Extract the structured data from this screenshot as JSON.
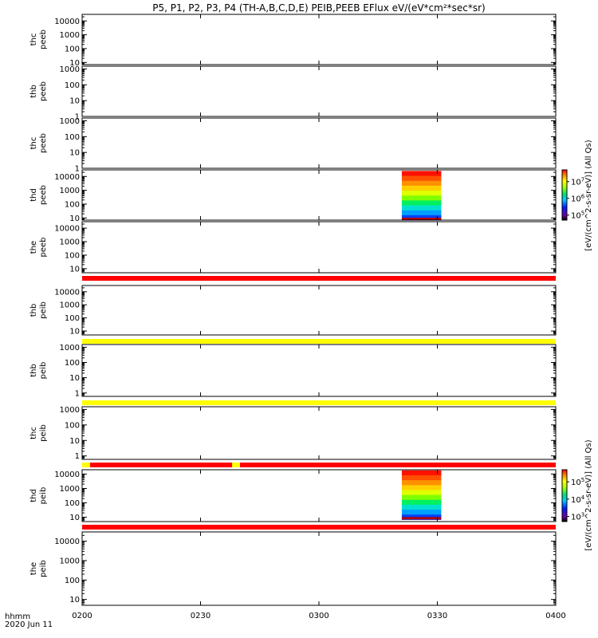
{
  "title": "P5, P1, P2, P3, P4 (TH-A,B,C,D,E) PEIB,PEEB EFlux eV/(eV*cm²*sec*sr)",
  "footer": {
    "time_label": "hhmm",
    "date_label": "2020 Jun 11"
  },
  "colors": {
    "red_flag": "#ff0000",
    "yellow_flag": "#ffff00",
    "axis": "#000000"
  },
  "chart_data": {
    "type": "heatmap",
    "x_ticks": [
      "0200",
      "0230",
      "0300",
      "0330",
      "0400"
    ],
    "xlim": [
      "0200",
      "0400"
    ],
    "panels": [
      {
        "name": "thc-peeb",
        "label_probe": "thc",
        "label_product": "peeb",
        "yscale": "log",
        "ylim": [
          7,
          30000
        ],
        "y_ticks": [
          "10",
          "100",
          "1000",
          "10000"
        ]
      },
      {
        "name": "thb-peeb",
        "label_probe": "thb",
        "label_product": "peeb",
        "yscale": "log",
        "ylim": [
          1,
          1500
        ],
        "y_ticks": [
          "1",
          "10",
          "100",
          "1000"
        ]
      },
      {
        "name": "thc-peeb-2",
        "label_probe": "thc",
        "label_product": "peeb",
        "yscale": "log",
        "ylim": [
          1,
          1500
        ],
        "y_ticks": [
          "1",
          "10",
          "100",
          "1000"
        ]
      },
      {
        "name": "thd-peeb",
        "label_probe": "thd",
        "label_product": "peeb",
        "yscale": "log",
        "ylim": [
          7,
          30000
        ],
        "y_ticks": [
          "10",
          "100",
          "1000",
          "10000"
        ],
        "spectrogram": {
          "x_start": "0321",
          "x_end": "0331",
          "ylim": [
            7,
            25000
          ]
        }
      },
      {
        "name": "the-peeb",
        "label_probe": "the",
        "label_product": "peeb",
        "yscale": "log",
        "ylim": [
          5,
          30000
        ],
        "y_ticks": [
          "10",
          "100",
          "1000",
          "10000"
        ]
      },
      {
        "name": "thb-peib",
        "label_probe": "thb",
        "label_product": "peib",
        "yscale": "log",
        "ylim": [
          5,
          30000
        ],
        "y_ticks": [
          "10",
          "100",
          "1000",
          "10000"
        ]
      },
      {
        "name": "thb-peib-2",
        "label_probe": "thb",
        "label_product": "peib",
        "yscale": "log",
        "ylim": [
          0.6,
          1500
        ],
        "y_ticks": [
          "1",
          "10",
          "100",
          "1000"
        ]
      },
      {
        "name": "thc-peib",
        "label_probe": "thc",
        "label_product": "peib",
        "yscale": "log",
        "ylim": [
          0.6,
          1500
        ],
        "y_ticks": [
          "1",
          "10",
          "100",
          "1000"
        ]
      },
      {
        "name": "thd-peib",
        "label_probe": "thd",
        "label_product": "peib",
        "yscale": "log",
        "ylim": [
          5,
          20000
        ],
        "y_ticks": [
          "10",
          "100",
          "1000",
          "10000"
        ],
        "spectrogram": {
          "x_start": "0321",
          "x_end": "0331",
          "ylim": [
            7,
            18000
          ]
        }
      },
      {
        "name": "the-peib",
        "label_probe": "the",
        "label_product": "peib",
        "yscale": "log",
        "ylim": [
          5,
          30000
        ],
        "y_ticks": [
          "10",
          "100",
          "1000",
          "10000"
        ]
      }
    ],
    "flag_bars": [
      {
        "name": "flag-bar-1",
        "color": "red",
        "x_start": "0200",
        "x_end": "0400"
      },
      {
        "name": "flag-bar-2",
        "color": "yellow",
        "x_start": "0200",
        "x_end": "0400"
      },
      {
        "name": "flag-bar-3",
        "color": "yellow",
        "x_start": "0200",
        "x_end": "0400"
      },
      {
        "name": "flag-bar-4",
        "color": "red",
        "x_start": "0200",
        "x_end": "0400",
        "yellow_segments": [
          [
            "0200",
            "0202"
          ],
          [
            "0238",
            "0240"
          ]
        ]
      },
      {
        "name": "flag-bar-5",
        "color": "red",
        "x_start": "0200",
        "x_end": "0400"
      }
    ],
    "colorbars": [
      {
        "name": "colorbar-peeb",
        "ticks": [
          {
            "base": "10",
            "exp": "7"
          },
          {
            "base": "10",
            "exp": "6"
          },
          {
            "base": "10",
            "exp": "5"
          }
        ],
        "label": "[eV/(cm^2-s-sr-eV)] (All Qs)"
      },
      {
        "name": "colorbar-peib",
        "ticks": [
          {
            "base": "10",
            "exp": "5"
          },
          {
            "base": "10",
            "exp": "4"
          },
          {
            "base": "10",
            "exp": "3"
          }
        ],
        "label": "[eV/(cm^2-s-sr-eV)] (All Qs)"
      }
    ]
  }
}
